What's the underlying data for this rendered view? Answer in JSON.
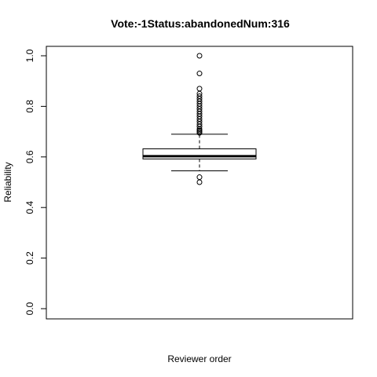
{
  "chart_data": {
    "type": "box",
    "title": "Vote:-1Status:abandonedNum:316",
    "xlabel": "Reviewer order",
    "ylabel": "Reliability",
    "ylim": [
      0.0,
      1.0
    ],
    "yticks": [
      "0.0",
      "0.2",
      "0.4",
      "0.6",
      "0.8",
      "1.0"
    ],
    "box": {
      "lower_whisker": 0.545,
      "q1": 0.592,
      "median": 0.603,
      "q3": 0.632,
      "upper_whisker": 0.69
    },
    "outliers": [
      0.5,
      0.52,
      0.695,
      0.7,
      0.705,
      0.71,
      0.72,
      0.73,
      0.74,
      0.75,
      0.76,
      0.77,
      0.78,
      0.79,
      0.8,
      0.81,
      0.82,
      0.83,
      0.84,
      0.85,
      0.87,
      0.93,
      1.0
    ]
  }
}
